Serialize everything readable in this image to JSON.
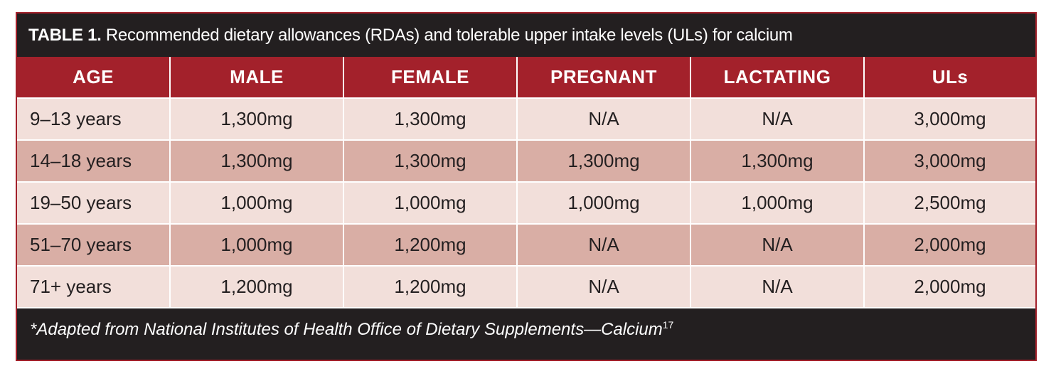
{
  "title": {
    "label": "TABLE 1.",
    "text": "Recommended dietary allowances (RDAs) and tolerable upper intake levels (ULs) for calcium"
  },
  "table": {
    "headers": [
      "AGE",
      "MALE",
      "FEMALE",
      "PREGNANT",
      "LACTATING",
      "ULs"
    ],
    "rows": [
      [
        "9–13 years",
        "1,300mg",
        "1,300mg",
        "N/A",
        "N/A",
        "3,000mg"
      ],
      [
        "14–18 years",
        "1,300mg",
        "1,300mg",
        "1,300mg",
        "1,300mg",
        "3,000mg"
      ],
      [
        "19–50 years",
        "1,000mg",
        "1,000mg",
        "1,000mg",
        "1,000mg",
        "2,500mg"
      ],
      [
        "51–70 years",
        "1,000mg",
        "1,200mg",
        "N/A",
        "N/A",
        "2,000mg"
      ],
      [
        "71+ years",
        "1,200mg",
        "1,200mg",
        "N/A",
        "N/A",
        "2,000mg"
      ]
    ]
  },
  "footnote": {
    "text": "*Adapted from National Institutes of Health Office of Dietary Supplements—Calcium",
    "reference": "17"
  }
}
